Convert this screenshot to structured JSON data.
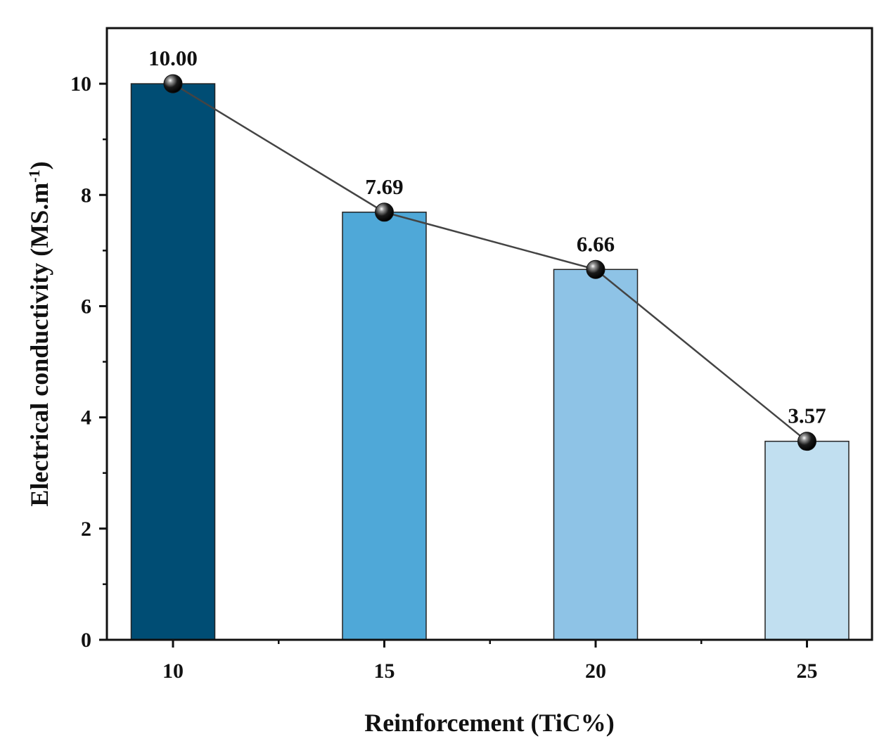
{
  "chart_data": {
    "type": "bar",
    "categories": [
      "10",
      "15",
      "20",
      "25"
    ],
    "values": [
      10.0,
      7.69,
      6.66,
      3.57
    ],
    "data_labels": [
      "10.00",
      "7.69",
      "6.66",
      "3.57"
    ],
    "bar_colors": [
      "#004d74",
      "#4fa8d8",
      "#8ec3e6",
      "#c1dff0"
    ],
    "overlay_line": {
      "color": "#444444",
      "marker": "sphere",
      "marker_color": "#111111"
    },
    "xlabel": "Reinforcement  (TiC%)",
    "ylabel": {
      "main": "Electrical conductivity (MS.m",
      "superscript": "-1",
      "suffix": ")"
    },
    "yticks": [
      "0",
      "2",
      "4",
      "6",
      "8",
      "10"
    ],
    "ylim": [
      0,
      11
    ],
    "grid": false,
    "legend": "none"
  }
}
